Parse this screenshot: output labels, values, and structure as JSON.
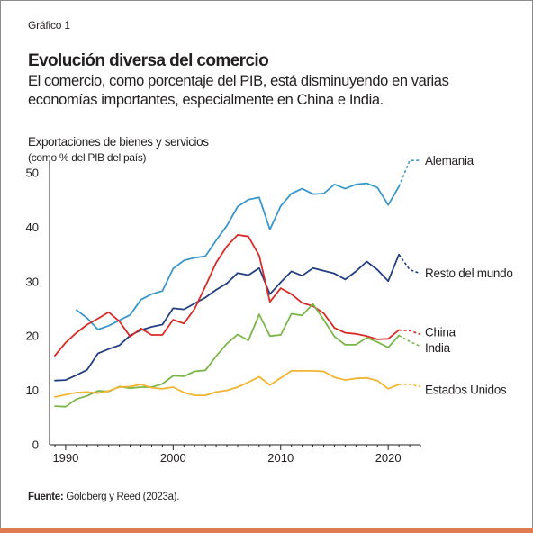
{
  "header": {
    "chart_label": "Gráfico 1",
    "title": "Evolución diversa del comercio",
    "subtitle": "El comercio, como porcentaje del PIB, está disminuyendo en varias economías importantes, especialmente en China e India."
  },
  "source": {
    "label": "Fuente:",
    "text": " Goldberg y Reed (2023a)."
  },
  "colors": {
    "alemania": "#3a97cb",
    "resto": "#233f82",
    "china": "#d92b26",
    "india": "#7ab648",
    "eeuu": "#f2b431",
    "accent_bar": "#e07b54"
  },
  "chart_data": {
    "type": "line",
    "ylabel": "Exportaciones de bienes y servicios",
    "yunit": "(como % del PIB del país)",
    "xlim": [
      1988.5,
      2023
    ],
    "ylim": [
      0,
      52
    ],
    "yticks": [
      0,
      10,
      20,
      30,
      40,
      50
    ],
    "xticks": [
      1990,
      2000,
      2010,
      2020
    ],
    "grid": false,
    "legend": "direct-labels-right",
    "series": [
      {
        "name": "Alemania",
        "colorKey": "alemania",
        "labelY": 52.3,
        "x": [
          1991,
          1992,
          1993,
          1994,
          1995,
          1996,
          1997,
          1998,
          1999,
          2000,
          2001,
          2002,
          2003,
          2004,
          2005,
          2006,
          2007,
          2008,
          2009,
          2010,
          2011,
          2012,
          2013,
          2014,
          2015,
          2016,
          2017,
          2018,
          2019,
          2020,
          2021
        ],
        "y": [
          24.8,
          23.3,
          21.2,
          21.9,
          22.9,
          23.9,
          26.7,
          27.7,
          28.3,
          32.4,
          33.9,
          34.4,
          34.7,
          37.6,
          40.3,
          43.8,
          45.1,
          45.5,
          39.6,
          43.9,
          46.2,
          47.1,
          46.1,
          46.2,
          47.9,
          47.1,
          47.9,
          48.1,
          47.3,
          44.1,
          47.5
        ],
        "proj_x": [
          2021,
          2022,
          2023
        ],
        "proj_y": [
          47.5,
          52.3,
          52.3
        ]
      },
      {
        "name": "Resto del mundo",
        "colorKey": "resto",
        "labelY": 31.6,
        "x": [
          1989,
          1990,
          1991,
          1992,
          1993,
          1994,
          1995,
          1996,
          1997,
          1998,
          1999,
          2000,
          2001,
          2002,
          2003,
          2004,
          2005,
          2006,
          2007,
          2008,
          2009,
          2010,
          2011,
          2012,
          2013,
          2014,
          2015,
          2016,
          2017,
          2018,
          2019,
          2020,
          2021
        ],
        "y": [
          11.8,
          11.9,
          12.8,
          13.8,
          16.8,
          17.6,
          18.3,
          20.1,
          21.1,
          21.7,
          22.1,
          25.1,
          24.9,
          26.0,
          27.1,
          28.5,
          29.7,
          31.6,
          31.2,
          32.5,
          27.7,
          29.9,
          31.9,
          31.1,
          32.5,
          32.0,
          31.5,
          30.4,
          31.9,
          33.7,
          32.2,
          30.1,
          35.0
        ],
        "proj_x": [
          2021,
          2022,
          2023
        ],
        "proj_y": [
          35.0,
          32.2,
          31.5
        ]
      },
      {
        "name": "China",
        "colorKey": "china",
        "labelY": 20.8,
        "x": [
          1989,
          1990,
          1991,
          1992,
          1993,
          1994,
          1995,
          1996,
          1997,
          1998,
          1999,
          2000,
          2001,
          2002,
          2003,
          2004,
          2005,
          2006,
          2007,
          2008,
          2009,
          2010,
          2011,
          2012,
          2013,
          2014,
          2015,
          2016,
          2017,
          2018,
          2019,
          2020,
          2021
        ],
        "y": [
          16.4,
          18.8,
          20.6,
          22.1,
          23.2,
          24.4,
          22.7,
          19.9,
          21.4,
          20.2,
          20.2,
          23.0,
          22.3,
          25.0,
          29.2,
          33.5,
          36.5,
          38.6,
          38.3,
          34.8,
          26.3,
          28.8,
          27.7,
          26.1,
          25.5,
          24.2,
          21.5,
          20.6,
          20.4,
          20.0,
          19.4,
          19.5,
          21.1
        ],
        "proj_x": [
          2021,
          2022,
          2023
        ],
        "proj_y": [
          21.1,
          21.0,
          20.3
        ]
      },
      {
        "name": "India",
        "colorKey": "india",
        "labelY": 17.9,
        "x": [
          1989,
          1990,
          1991,
          1992,
          1993,
          1994,
          1995,
          1996,
          1997,
          1998,
          1999,
          2000,
          2001,
          2002,
          2003,
          2004,
          2005,
          2006,
          2007,
          2008,
          2009,
          2010,
          2011,
          2012,
          2013,
          2014,
          2015,
          2016,
          2017,
          2018,
          2019,
          2020,
          2021
        ],
        "y": [
          7.1,
          7.0,
          8.4,
          9.0,
          9.9,
          9.8,
          10.7,
          10.4,
          10.6,
          10.6,
          11.2,
          12.7,
          12.6,
          13.5,
          13.7,
          16.3,
          18.6,
          20.3,
          19.2,
          24.0,
          20.0,
          20.2,
          24.1,
          23.8,
          25.9,
          23.0,
          19.9,
          18.4,
          18.4,
          19.7,
          18.9,
          17.9,
          20.1
        ],
        "proj_x": [
          2021,
          2022,
          2023
        ],
        "proj_y": [
          20.1,
          19.0,
          18.1
        ]
      },
      {
        "name": "Estados Unidos",
        "colorKey": "eeuu",
        "labelY": 10.2,
        "x": [
          1989,
          1990,
          1991,
          1992,
          1993,
          1994,
          1995,
          1996,
          1997,
          1998,
          1999,
          2000,
          2001,
          2002,
          2003,
          2004,
          2005,
          2006,
          2007,
          2008,
          2009,
          2010,
          2011,
          2012,
          2013,
          2014,
          2015,
          2016,
          2017,
          2018,
          2019,
          2020,
          2021
        ],
        "y": [
          8.8,
          9.2,
          9.6,
          9.7,
          9.5,
          9.9,
          10.6,
          10.7,
          11.1,
          10.5,
          10.3,
          10.6,
          9.6,
          9.1,
          9.1,
          9.7,
          10.0,
          10.6,
          11.5,
          12.5,
          11.0,
          12.3,
          13.6,
          13.6,
          13.6,
          13.5,
          12.4,
          11.9,
          12.2,
          12.3,
          11.8,
          10.3,
          11.1
        ],
        "proj_x": [
          2021,
          2022,
          2023
        ],
        "proj_y": [
          11.1,
          11.1,
          10.7
        ]
      }
    ]
  }
}
